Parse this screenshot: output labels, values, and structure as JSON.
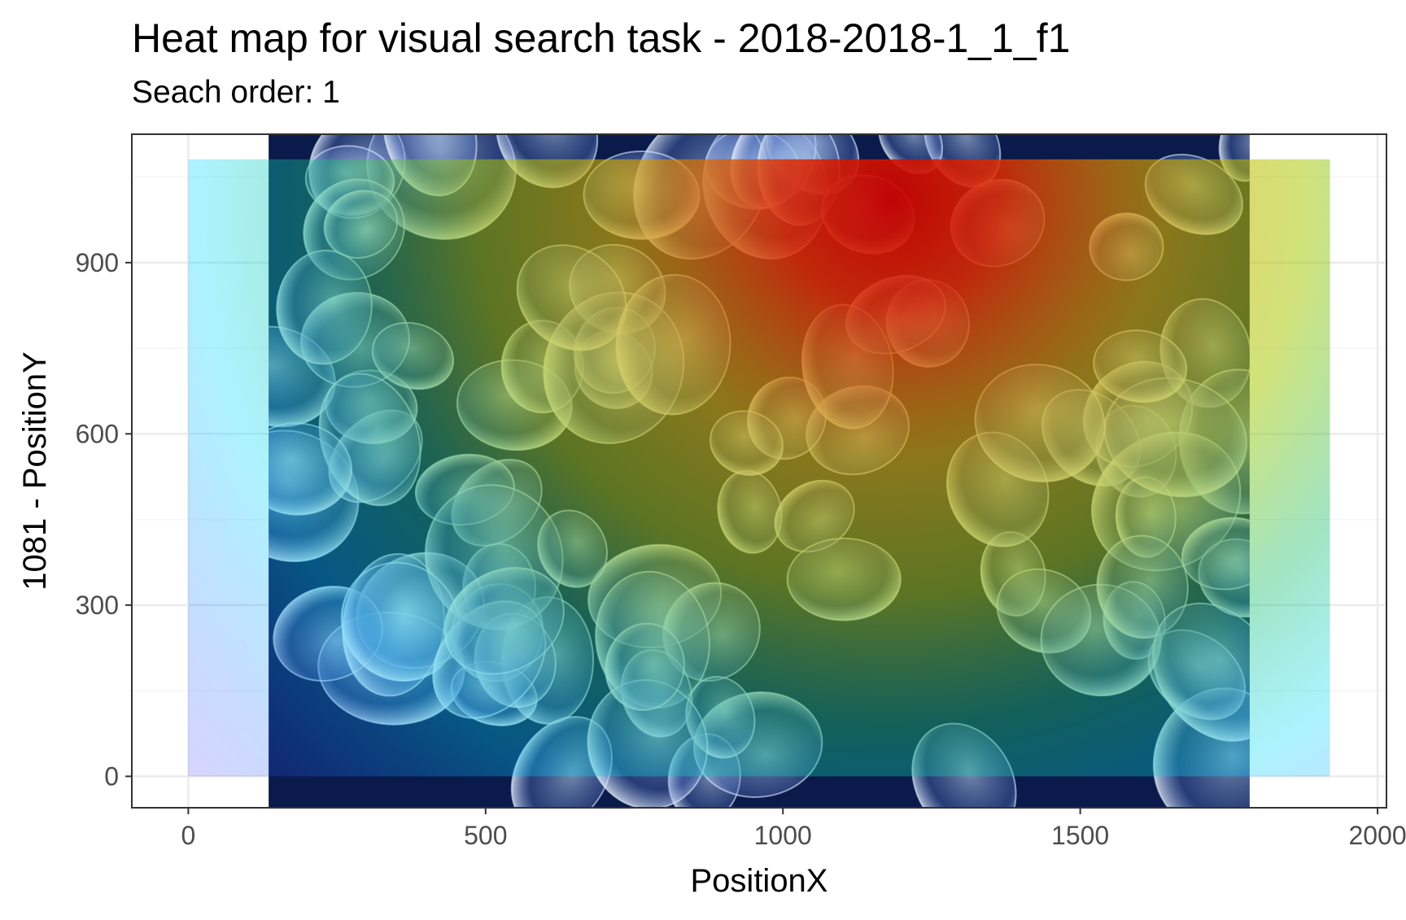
{
  "chart_data": {
    "type": "heatmap",
    "title": "Heat map for visual search task - 2018-2018-1_1_f1",
    "subtitle": "Seach order: 1",
    "xlabel": "PositionX",
    "ylabel": "1081 - PositionY",
    "xlim": [
      -95,
      2015
    ],
    "ylim": [
      -55,
      1125
    ],
    "x_ticks": [
      0,
      500,
      1000,
      1500,
      2000
    ],
    "y_ticks": [
      0,
      300,
      600,
      900
    ],
    "x_tick_labels": [
      "0",
      "500",
      "1000",
      "1500",
      "2000"
    ],
    "y_tick_labels": [
      "0",
      "300",
      "600",
      "900"
    ],
    "grid": true,
    "legend": "none",
    "background_image_extent": {
      "x": [
        135,
        1785
      ],
      "y": [
        -55,
        1125
      ]
    },
    "heatmap_extent": {
      "x": [
        0,
        1920
      ],
      "y": [
        0,
        1081
      ]
    },
    "density_peak": {
      "x": 1180,
      "y": 1010
    },
    "colormap": [
      "#0000ff",
      "#00ffff",
      "#00ff00",
      "#ffff00",
      "#ff0000"
    ],
    "colors": {
      "panel_border": "#333333",
      "grid_major": "#ebebeb",
      "grid_minor": "#f5f5f5",
      "tick_text": "#4d4d4d"
    }
  }
}
